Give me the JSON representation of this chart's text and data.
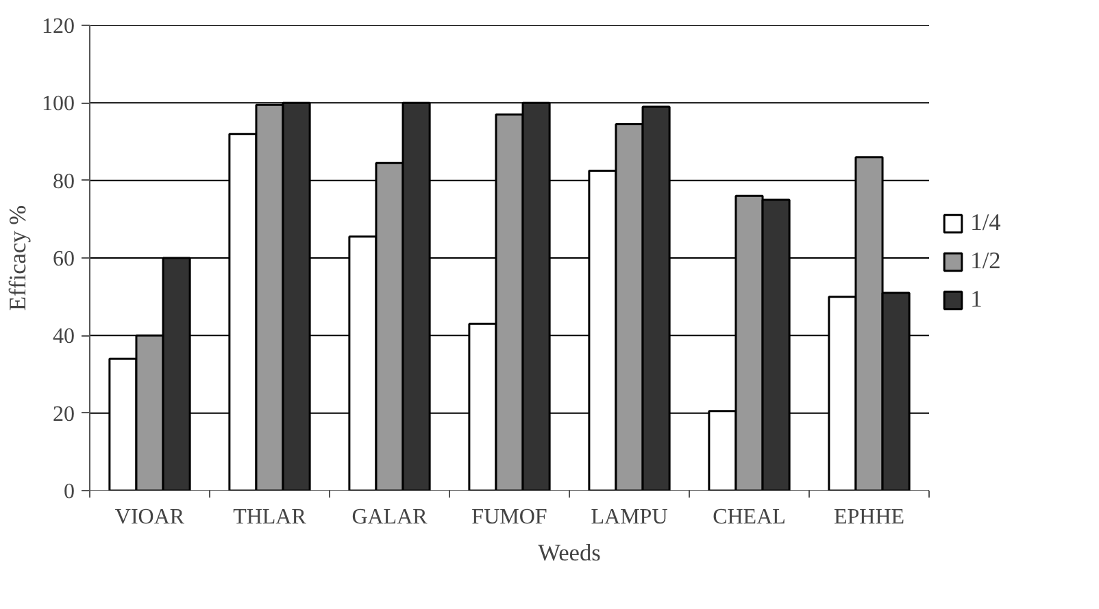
{
  "chart_data": {
    "type": "bar",
    "xlabel": "Weeds",
    "ylabel": "Efficacy %",
    "categories": [
      "VIOAR",
      "THLAR",
      "GALAR",
      "FUMOF",
      "LAMPU",
      "CHEAL",
      "EPHHE"
    ],
    "series": [
      {
        "name": "1/4",
        "color": "#ffffff",
        "values": [
          34,
          92,
          65.5,
          43,
          82.5,
          20.5,
          50
        ]
      },
      {
        "name": "1/2",
        "color": "#999999",
        "values": [
          40,
          99.5,
          84.5,
          97,
          94.5,
          76,
          86
        ]
      },
      {
        "name": "1",
        "color": "#333333",
        "values": [
          60,
          100,
          100,
          100,
          99,
          75,
          51
        ]
      }
    ],
    "ylim": [
      0,
      120
    ],
    "yticks": [
      0,
      20,
      40,
      60,
      80,
      100,
      120
    ],
    "grid": "y",
    "legend": "right"
  }
}
